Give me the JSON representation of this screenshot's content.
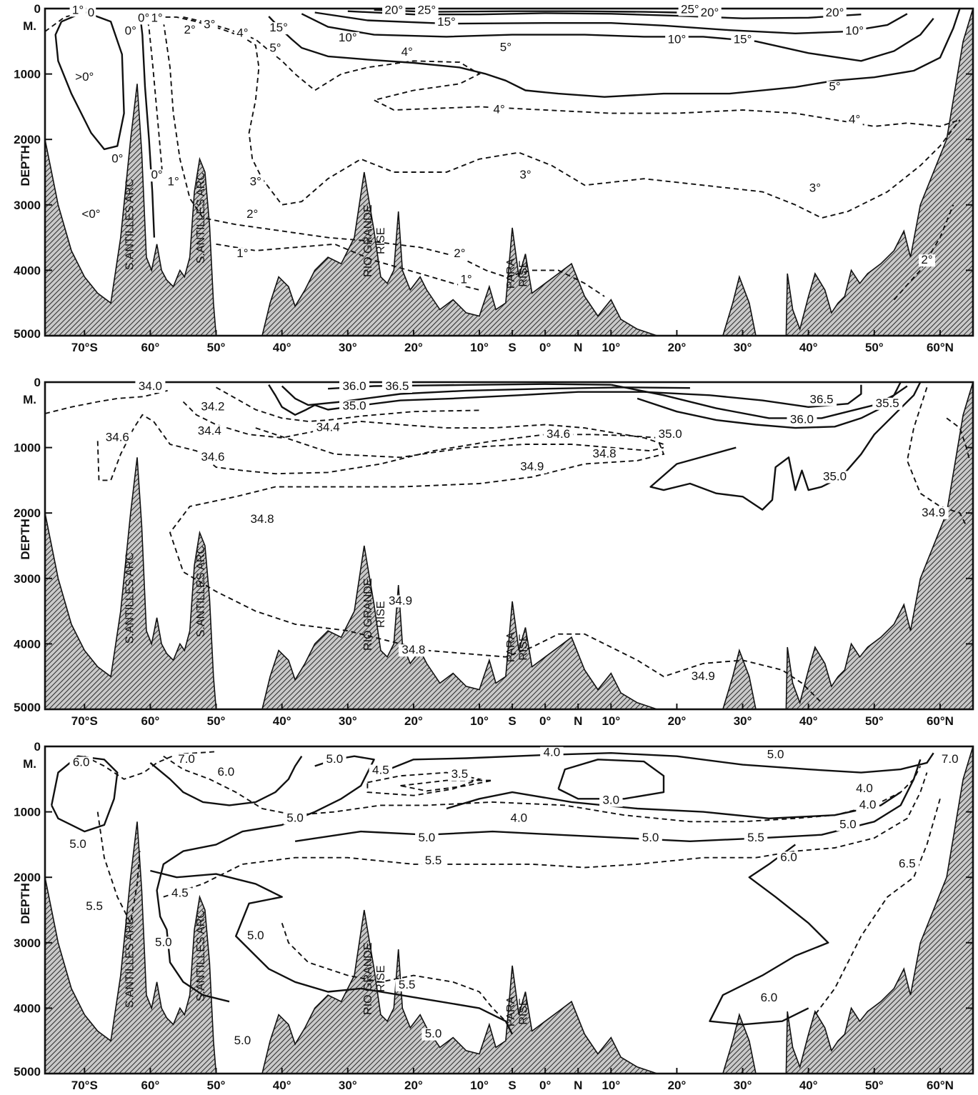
{
  "chart_data": [
    {
      "type": "contour",
      "panel": "temperature",
      "ylabel": "DEPTH",
      "y_unit_label": "M.",
      "ylim": [
        0,
        5000
      ],
      "y_ticks": [
        "0",
        "1000",
        "2000",
        "3000",
        "4000",
        "5000"
      ],
      "x_ticks": [
        "70°S",
        "60°",
        "50°",
        "40°",
        "30°",
        "20°",
        "10°",
        "S",
        "0°",
        "N",
        "10°",
        "20°",
        "30°",
        "40°",
        "50°",
        "60°N"
      ],
      "xlim_lat": [
        -76,
        65
      ],
      "features": [
        "S.ANTILLES ARC",
        "S.ANTILLES ARC",
        "RIO GRANDE RISE",
        "PARA RISE"
      ],
      "contour_labels": [
        {
          "text": "0",
          "lat": -69,
          "depth": 120
        },
        {
          "text": "1°",
          "lat": -71,
          "depth": 80
        },
        {
          "text": "0°",
          "lat": -63,
          "depth": 400
        },
        {
          "text": "0°",
          "lat": -61,
          "depth": 200
        },
        {
          "text": "1°",
          "lat": -59,
          "depth": 200
        },
        {
          "text": "2°",
          "lat": -54,
          "depth": 380
        },
        {
          "text": "3°",
          "lat": -51,
          "depth": 300
        },
        {
          "text": "4°",
          "lat": -46,
          "depth": 430
        },
        {
          "text": "5°",
          "lat": -41,
          "depth": 660
        },
        {
          "text": "15°",
          "lat": -40.5,
          "depth": 350
        },
        {
          "text": "20°",
          "lat": -23,
          "depth": 80
        },
        {
          "text": "25°",
          "lat": -18,
          "depth": 80
        },
        {
          "text": "15°",
          "lat": -15,
          "depth": 260
        },
        {
          "text": "10°",
          "lat": -30,
          "depth": 500
        },
        {
          "text": "4°",
          "lat": -21,
          "depth": 720
        },
        {
          "text": "5°",
          "lat": -6,
          "depth": 650
        },
        {
          "text": "25°",
          "lat": 22,
          "depth": 70
        },
        {
          "text": "20°",
          "lat": 25,
          "depth": 120
        },
        {
          "text": "20°",
          "lat": 44,
          "depth": 120
        },
        {
          "text": "10°",
          "lat": 20,
          "depth": 530
        },
        {
          "text": "15°",
          "lat": 30,
          "depth": 530
        },
        {
          "text": "10°",
          "lat": 47,
          "depth": 400
        },
        {
          "text": "5°",
          "lat": 44,
          "depth": 1250
        },
        {
          "text": "4°",
          "lat": -7,
          "depth": 1600
        },
        {
          "text": "4°",
          "lat": 47,
          "depth": 1750
        },
        {
          "text": ">0°",
          "lat": -70,
          "depth": 1100
        },
        {
          "text": "0°",
          "lat": -65,
          "depth": 2350
        },
        {
          "text": "0°",
          "lat": -59,
          "depth": 2600
        },
        {
          "text": "1°",
          "lat": -56.5,
          "depth": 2700
        },
        {
          "text": "<0°",
          "lat": -69,
          "depth": 3200
        },
        {
          "text": "3°",
          "lat": -44,
          "depth": 2700
        },
        {
          "text": "3°",
          "lat": -3,
          "depth": 2600
        },
        {
          "text": "3°",
          "lat": 41,
          "depth": 2800
        },
        {
          "text": "2°",
          "lat": -44.5,
          "depth": 3200
        },
        {
          "text": "1°",
          "lat": -46,
          "depth": 3800
        },
        {
          "text": "2°",
          "lat": -13,
          "depth": 3800
        },
        {
          "text": "1°",
          "lat": -12,
          "depth": 4200
        },
        {
          "text": "2°",
          "lat": 58,
          "depth": 3900
        }
      ]
    },
    {
      "type": "contour",
      "panel": "salinity",
      "ylabel": "DEPTH",
      "y_unit_label": "M.",
      "ylim": [
        0,
        5000
      ],
      "y_ticks": [
        "0",
        "1000",
        "2000",
        "3000",
        "4000",
        "5000"
      ],
      "x_ticks": [
        "70°S",
        "60°",
        "50°",
        "40°",
        "30°",
        "20°",
        "10°",
        "S",
        "0°",
        "N",
        "10°",
        "20°",
        "30°",
        "40°",
        "50°",
        "60°N"
      ],
      "xlim_lat": [
        -76,
        65
      ],
      "features": [
        "S.ANTILLES ARC",
        "S.ANTILLES ARC",
        "RIO GRANDE RISE",
        "PARA RISE"
      ],
      "contour_labels": [
        {
          "text": "34.0",
          "lat": -60,
          "depth": 120
        },
        {
          "text": "34.2",
          "lat": -50.5,
          "depth": 430
        },
        {
          "text": "34.4",
          "lat": -51,
          "depth": 800
        },
        {
          "text": "34.6",
          "lat": -65,
          "depth": 900
        },
        {
          "text": "34.6",
          "lat": -50.5,
          "depth": 1200
        },
        {
          "text": "36.0",
          "lat": -29,
          "depth": 120
        },
        {
          "text": "36.5",
          "lat": -22.5,
          "depth": 120
        },
        {
          "text": "35.0",
          "lat": -29,
          "depth": 420
        },
        {
          "text": "34.4",
          "lat": -33,
          "depth": 750
        },
        {
          "text": "34.6",
          "lat": 2,
          "depth": 850
        },
        {
          "text": "34.8",
          "lat": 9,
          "depth": 1150
        },
        {
          "text": "34.9",
          "lat": -2,
          "depth": 1350
        },
        {
          "text": "35.0",
          "lat": 19,
          "depth": 850
        },
        {
          "text": "36.5",
          "lat": 42,
          "depth": 320
        },
        {
          "text": "35.5",
          "lat": 52,
          "depth": 380
        },
        {
          "text": "36.0",
          "lat": 39,
          "depth": 630
        },
        {
          "text": "35.0",
          "lat": 44,
          "depth": 1500
        },
        {
          "text": "34.9",
          "lat": 59,
          "depth": 2050
        },
        {
          "text": "34.8",
          "lat": -43,
          "depth": 2150
        },
        {
          "text": "34.9",
          "lat": -22,
          "depth": 3400
        },
        {
          "text": "34.8",
          "lat": -20,
          "depth": 4150
        },
        {
          "text": "34.9",
          "lat": 24,
          "depth": 4550
        }
      ]
    },
    {
      "type": "contour",
      "panel": "oxygen",
      "ylabel": "DEPTH",
      "y_unit_label": "M.",
      "ylim": [
        0,
        5000
      ],
      "y_ticks": [
        "0",
        "1000",
        "2000",
        "3000",
        "4000",
        "5000"
      ],
      "x_ticks": [
        "70°S",
        "60°",
        "50°",
        "40°",
        "30°",
        "20°",
        "10°",
        "S",
        "0°",
        "N",
        "10°",
        "20°",
        "30°",
        "40°",
        "50°",
        "60°N"
      ],
      "xlim_lat": [
        -76,
        65
      ],
      "features": [
        "S.ANTILLES ARC",
        "S.ANTILLES ARC",
        "RIO GRANDE RISE",
        "PARA RISE"
      ],
      "contour_labels": [
        {
          "text": "6.0",
          "lat": -70.5,
          "depth": 300
        },
        {
          "text": "7.0",
          "lat": -54.5,
          "depth": 250
        },
        {
          "text": "6.0",
          "lat": -48.5,
          "depth": 450
        },
        {
          "text": "5.0",
          "lat": -32,
          "depth": 250
        },
        {
          "text": "4.5",
          "lat": -25,
          "depth": 420
        },
        {
          "text": "3.5",
          "lat": -13,
          "depth": 480
        },
        {
          "text": "4.0",
          "lat": 1,
          "depth": 150
        },
        {
          "text": "5.0",
          "lat": 35,
          "depth": 180
        },
        {
          "text": "7.0",
          "lat": 61.5,
          "depth": 250
        },
        {
          "text": "3.0",
          "lat": 10,
          "depth": 880
        },
        {
          "text": "4.0",
          "lat": 48.5,
          "depth": 700
        },
        {
          "text": "4.0",
          "lat": 49,
          "depth": 950
        },
        {
          "text": "5.0",
          "lat": -38,
          "depth": 1150
        },
        {
          "text": "4.0",
          "lat": -4,
          "depth": 1150
        },
        {
          "text": "5.0",
          "lat": 46,
          "depth": 1250
        },
        {
          "text": "5.0",
          "lat": -71,
          "depth": 1550
        },
        {
          "text": "5.0",
          "lat": -18,
          "depth": 1450
        },
        {
          "text": "5.0",
          "lat": 16,
          "depth": 1450
        },
        {
          "text": "5.5",
          "lat": 32,
          "depth": 1450
        },
        {
          "text": "5.5",
          "lat": -17,
          "depth": 1800
        },
        {
          "text": "6.0",
          "lat": 37,
          "depth": 1750
        },
        {
          "text": "6.5",
          "lat": 55,
          "depth": 1850
        },
        {
          "text": "5.5",
          "lat": -68.5,
          "depth": 2500
        },
        {
          "text": "4.5",
          "lat": -55.5,
          "depth": 2300
        },
        {
          "text": "5.0",
          "lat": -58,
          "depth": 3050
        },
        {
          "text": "5.0",
          "lat": -44,
          "depth": 2950
        },
        {
          "text": "5.5",
          "lat": -21,
          "depth": 3700
        },
        {
          "text": "5.0",
          "lat": -17,
          "depth": 4450
        },
        {
          "text": "5.0",
          "lat": -46,
          "depth": 4550
        },
        {
          "text": "6.0",
          "lat": 34,
          "depth": 3900
        }
      ]
    }
  ]
}
